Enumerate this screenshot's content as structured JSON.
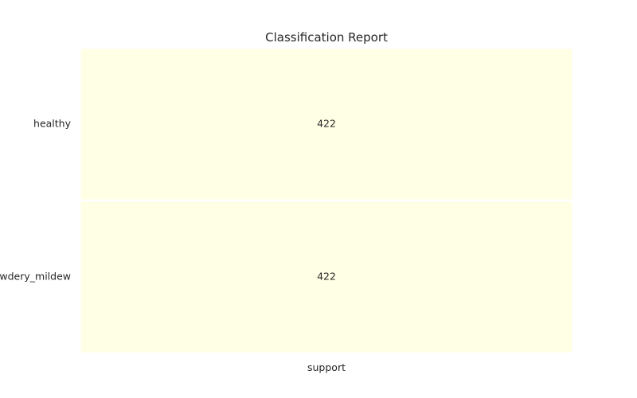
{
  "chart_data": {
    "type": "heatmap",
    "title": "Classification Report",
    "xlabel": "",
    "ylabel": "",
    "columns": [
      "support"
    ],
    "rows": [
      "healthy",
      "powdery_mildew"
    ],
    "values": [
      [
        422
      ],
      [
        422
      ]
    ],
    "cell_labels": [
      [
        "422"
      ],
      [
        "422"
      ]
    ],
    "colors": {
      "cell_fill": "#ffffe5",
      "cell_border": "#ffffff",
      "text": "#262626",
      "background": "#ffffff"
    },
    "grid": false,
    "legend": "none"
  }
}
